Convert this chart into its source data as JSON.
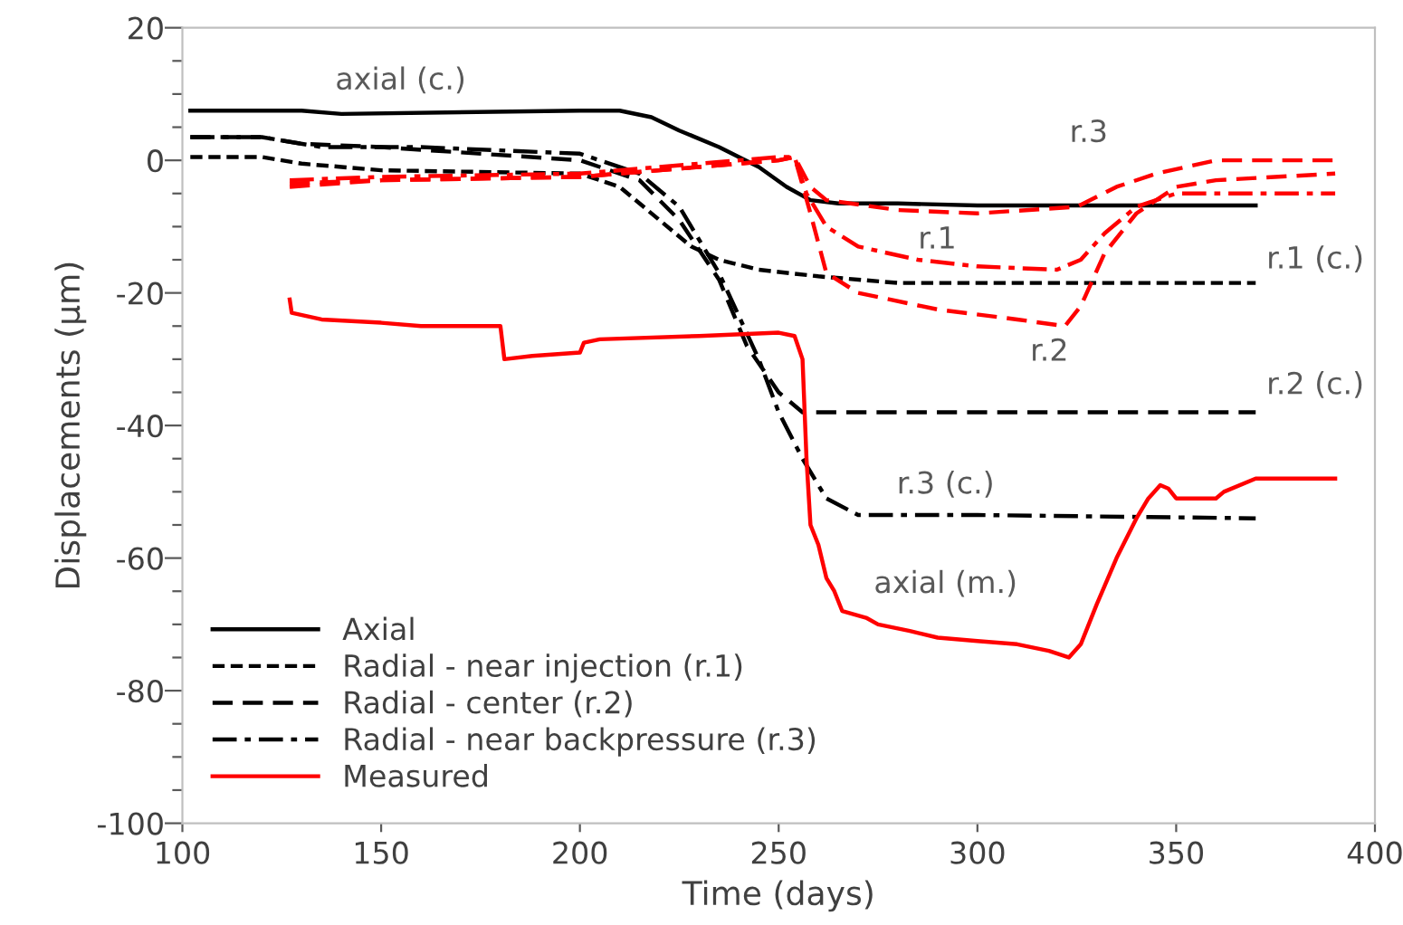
{
  "chart_data": {
    "type": "line",
    "xlabel": "Time (days)",
    "ylabel": "Displacements (μm)",
    "xlim": [
      100,
      400
    ],
    "xticks": [
      100,
      150,
      200,
      250,
      300,
      350,
      400
    ],
    "ylim": [
      -100,
      20
    ],
    "yticks": [
      -100,
      {
        "value": -95,
        "label": null
      },
      {
        "value": -90,
        "label": null
      },
      {
        "value": -85,
        "label": null
      },
      -80,
      {
        "value": -75,
        "label": null
      },
      {
        "value": -70,
        "label": null
      },
      {
        "value": -65,
        "label": null
      },
      -60,
      {
        "value": -55,
        "label": null
      },
      {
        "value": -50,
        "label": null
      },
      {
        "value": -45,
        "label": null
      },
      -40,
      {
        "value": -35,
        "label": null
      },
      {
        "value": -30,
        "label": null
      },
      {
        "value": -25,
        "label": null
      },
      -20,
      {
        "value": -15,
        "label": null
      },
      {
        "value": -10,
        "label": null
      },
      {
        "value": -5,
        "label": null
      },
      0,
      {
        "value": 5,
        "label": null
      },
      {
        "value": 10,
        "label": null
      },
      {
        "value": 15,
        "label": null
      },
      20
    ],
    "grid": false,
    "legend": "bottom left",
    "marker": "none",
    "series": [
      {
        "name": "Axial",
        "color": "#000000",
        "line_style": "solid",
        "x": [
          102,
          130,
          140,
          200,
          210,
          218,
          225,
          235,
          245,
          252,
          258,
          265,
          280,
          300,
          370
        ],
        "values": [
          7.5,
          7.5,
          7,
          7.5,
          7.5,
          6.5,
          4.5,
          2,
          -1,
          -4,
          -6,
          -6.5,
          -6.5,
          -6.8,
          -6.8
        ]
      },
      {
        "name": "Radial - near injection (r.1)",
        "color": "#000000",
        "line_style": "dotted",
        "x": [
          102,
          120,
          130,
          150,
          200,
          210,
          220,
          228,
          235,
          245,
          260,
          280,
          300,
          370
        ],
        "values": [
          0.5,
          0.5,
          -0.5,
          -1.5,
          -2,
          -4,
          -9,
          -13,
          -15,
          -16.5,
          -17.5,
          -18.5,
          -18.5,
          -18.5
        ]
      },
      {
        "name": "Radial - center (r.2)",
        "color": "#000000",
        "line_style": "dashed",
        "x": [
          102,
          120,
          130,
          150,
          200,
          215,
          225,
          235,
          242,
          250,
          256,
          260,
          300,
          370
        ],
        "values": [
          3.5,
          3.5,
          2.5,
          2,
          0,
          -3,
          -9,
          -18,
          -28,
          -35,
          -38,
          -38,
          -38,
          -38
        ]
      },
      {
        "name": "Radial - near backpressure (r.3)",
        "color": "#000000",
        "line_style": "dashdot",
        "x": [
          102,
          120,
          135,
          160,
          200,
          215,
          225,
          235,
          245,
          250,
          256,
          262,
          270,
          300,
          370
        ],
        "values": [
          3.5,
          3.5,
          2,
          2,
          1,
          -2,
          -7,
          -17,
          -30,
          -38,
          -45,
          -51,
          -53.5,
          -53.5,
          -54
        ]
      },
      {
        "name": "Measured",
        "color": "#ff0000",
        "line_style": "solid",
        "x": [
          127,
          127.5,
          135,
          150,
          160,
          180,
          181,
          188,
          200,
          201,
          205,
          230,
          250,
          254,
          256,
          257,
          258,
          260,
          262,
          264,
          266,
          272,
          275,
          283,
          290,
          300,
          310,
          318,
          323,
          326,
          330,
          335,
          340,
          343,
          346,
          348,
          350,
          360,
          362,
          370,
          390
        ],
        "values": [
          -21,
          -23,
          -24,
          -24.5,
          -25,
          -25,
          -30,
          -29.5,
          -29,
          -27.5,
          -27,
          -26.5,
          -26,
          -26.5,
          -30,
          -45,
          -55,
          -58,
          -63,
          -65,
          -68,
          -69,
          -70,
          -71,
          -72,
          -72.5,
          -73,
          -74,
          -75,
          -73,
          -67,
          -60,
          -54,
          -51,
          -49,
          -49.5,
          -51,
          -51,
          -50,
          -48,
          -48
        ]
      },
      {
        "color": "#ff0000",
        "line_style": "dashdot",
        "x": [
          127,
          150,
          200,
          230,
          250,
          254,
          257,
          262,
          270,
          285,
          300,
          320,
          326,
          332,
          340,
          350,
          370,
          390
        ],
        "values": [
          -3,
          -2.5,
          -2,
          -0.5,
          0.5,
          0.5,
          -5,
          -10,
          -13,
          -15,
          -16,
          -16.5,
          -15,
          -11,
          -7,
          -5,
          -5,
          -5
        ]
      },
      {
        "color": "#ff0000",
        "line_style": "dashed",
        "x": [
          127,
          150,
          200,
          230,
          250,
          254,
          258,
          262,
          270,
          290,
          310,
          322,
          326,
          332,
          340,
          350,
          360,
          390
        ],
        "values": [
          -3.5,
          -3,
          -2.5,
          -1,
          0,
          0.5,
          -8,
          -17,
          -20,
          -22.5,
          -24,
          -25,
          -22,
          -14,
          -8,
          -4,
          -3,
          -2
        ]
      },
      {
        "color": "#ff0000",
        "line_style": "dashed",
        "x": [
          127,
          150,
          200,
          230,
          250,
          254,
          258,
          262,
          280,
          300,
          325,
          335,
          345,
          360,
          390
        ],
        "values": [
          -4,
          -3,
          -2.5,
          -1,
          0,
          0.5,
          -4,
          -6,
          -7.5,
          -8,
          -7,
          -4,
          -2,
          0,
          0
        ]
      }
    ],
    "annotations": [
      "axial (c.)",
      "r.1 (c.)",
      "r.2 (c.)",
      "r.3 (c.)",
      "axial (m.)",
      "r.1",
      "r.2",
      "r.3"
    ]
  }
}
